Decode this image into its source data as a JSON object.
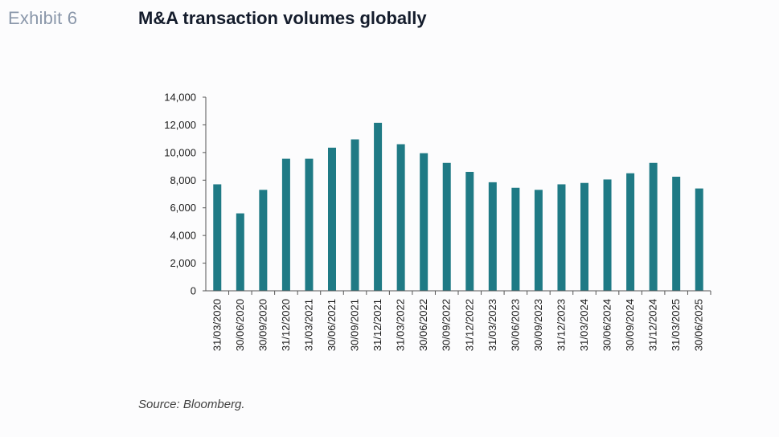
{
  "header": {
    "exhibit_label": "Exhibit 6",
    "title": "M&A transaction volumes globally"
  },
  "footer": {
    "source": "Source: Bloomberg."
  },
  "colors": {
    "bar": "#1f7a85",
    "axis": "#555555"
  },
  "chart_data": {
    "type": "bar",
    "title": "M&A transaction volumes globally",
    "xlabel": "",
    "ylabel": "",
    "ylim": [
      0,
      14000
    ],
    "yticks": [
      0,
      2000,
      4000,
      6000,
      8000,
      10000,
      12000,
      14000
    ],
    "ytick_labels": [
      "0",
      "2,000",
      "4,000",
      "6,000",
      "8,000",
      "10,000",
      "12,000",
      "14,000"
    ],
    "grid": false,
    "legend": "none",
    "categories": [
      "31/03/2020",
      "30/06/2020",
      "30/09/2020",
      "31/12/2020",
      "31/03/2021",
      "30/06/2021",
      "30/09/2021",
      "31/12/2021",
      "31/03/2022",
      "30/06/2022",
      "30/09/2022",
      "31/12/2022",
      "31/03/2023",
      "30/06/2023",
      "30/09/2023",
      "31/12/2023",
      "31/03/2024",
      "30/06/2024",
      "30/09/2024",
      "31/12/2024",
      "31/03/2025",
      "30/06/2025"
    ],
    "values": [
      7700,
      5600,
      7300,
      9550,
      9550,
      10350,
      10950,
      12150,
      10600,
      9950,
      9250,
      8600,
      7850,
      7450,
      7300,
      7700,
      7800,
      8050,
      8500,
      9250,
      8250,
      7400
    ]
  }
}
